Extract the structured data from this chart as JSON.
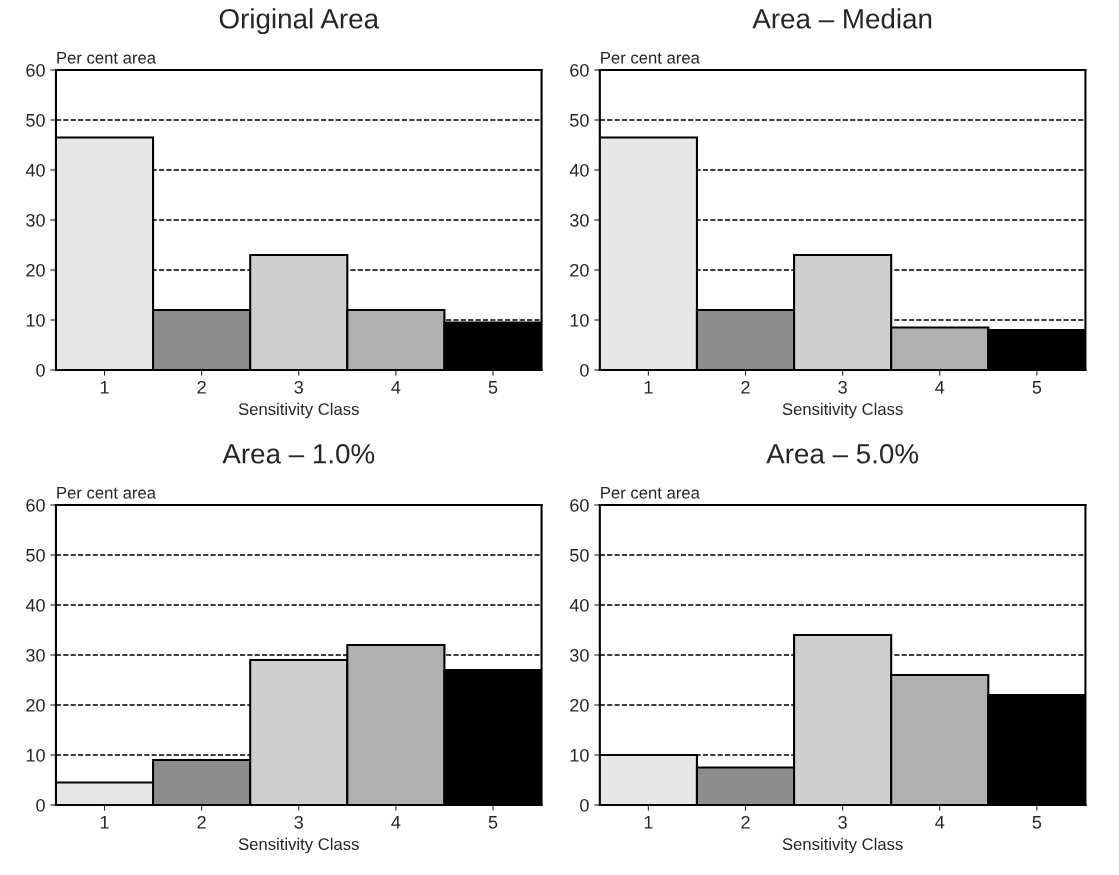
{
  "chart_data": [
    {
      "type": "bar",
      "title": "Original Area",
      "xlabel": "Sensitivity Class",
      "ylabel": "Per cent area",
      "categories": [
        "1",
        "2",
        "3",
        "4",
        "5"
      ],
      "values": [
        46.5,
        12,
        23,
        12,
        9.5
      ],
      "colors": [
        "#e6e6e6",
        "#8c8c8c",
        "#cfcfcf",
        "#b0b0b0",
        "#000000"
      ],
      "ylim": [
        0,
        60
      ],
      "yticks": [
        0,
        10,
        20,
        30,
        40,
        50,
        60
      ],
      "grid": "y",
      "line_style": "dashed"
    },
    {
      "type": "bar",
      "title": "Area – Median",
      "xlabel": "Sensitivity Class",
      "ylabel": "Per cent area",
      "categories": [
        "1",
        "2",
        "3",
        "4",
        "5"
      ],
      "values": [
        46.5,
        12,
        23,
        8.5,
        8
      ],
      "colors": [
        "#e6e6e6",
        "#8c8c8c",
        "#cfcfcf",
        "#b0b0b0",
        "#000000"
      ],
      "ylim": [
        0,
        60
      ],
      "yticks": [
        0,
        10,
        20,
        30,
        40,
        50,
        60
      ],
      "grid": "y",
      "line_style": "dashed"
    },
    {
      "type": "bar",
      "title": "Area – 1.0%",
      "xlabel": "Sensitivity Class",
      "ylabel": "Per cent area",
      "categories": [
        "1",
        "2",
        "3",
        "4",
        "5"
      ],
      "values": [
        4.5,
        9,
        29,
        32,
        27
      ],
      "colors": [
        "#e6e6e6",
        "#8c8c8c",
        "#cfcfcf",
        "#b0b0b0",
        "#000000"
      ],
      "ylim": [
        0,
        60
      ],
      "yticks": [
        0,
        10,
        20,
        30,
        40,
        50,
        60
      ],
      "grid": "y",
      "line_style": "dashed"
    },
    {
      "type": "bar",
      "title": "Area – 5.0%",
      "xlabel": "Sensitivity Class",
      "ylabel": "Per cent area",
      "categories": [
        "1",
        "2",
        "3",
        "4",
        "5"
      ],
      "values": [
        10,
        7.5,
        34,
        26,
        22
      ],
      "colors": [
        "#e6e6e6",
        "#8c8c8c",
        "#cfcfcf",
        "#b0b0b0",
        "#000000"
      ],
      "ylim": [
        0,
        60
      ],
      "yticks": [
        0,
        10,
        20,
        30,
        40,
        50,
        60
      ],
      "grid": "y",
      "line_style": "dashed"
    }
  ]
}
